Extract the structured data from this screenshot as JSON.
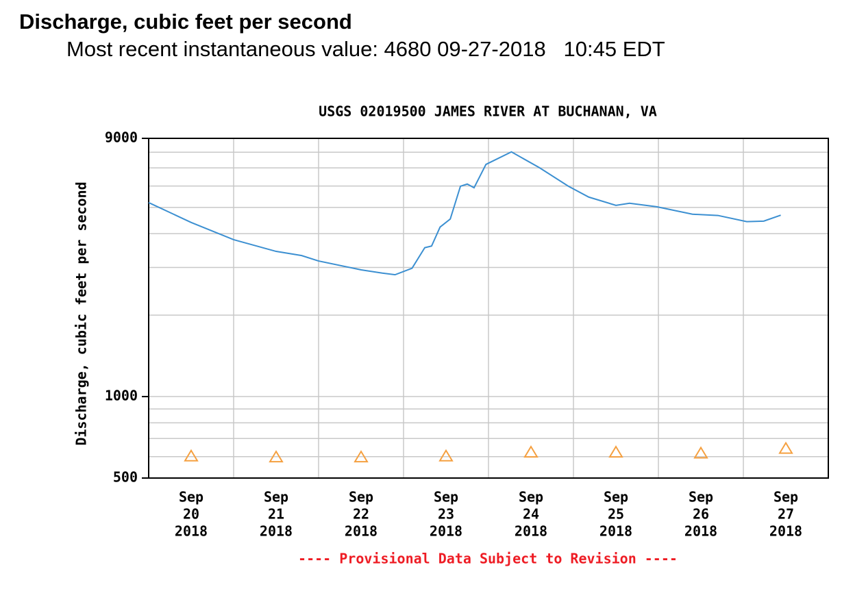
{
  "header": {
    "title": "Discharge, cubic feet per second",
    "subtitle": "Most recent instantaneous value: 4680 09-27-2018   10:45 EDT"
  },
  "chart_data": {
    "type": "line",
    "title": "USGS 02019500 JAMES RIVER AT BUCHANAN, VA",
    "y_label": "Discharge, cubic feet per second",
    "note": "---- Provisional Data Subject to Revision ----",
    "log_y": true,
    "xlim": [
      20,
      28
    ],
    "ylim": [
      500,
      9000
    ],
    "yticks": [
      500,
      1000,
      9000
    ],
    "ygrid": [
      600,
      700,
      800,
      900,
      1000,
      2000,
      3000,
      4000,
      5000,
      6000,
      7000,
      8000
    ],
    "xgrid": [
      21,
      22,
      23,
      24,
      25,
      26,
      27
    ],
    "categories": [
      [
        "Sep",
        "20",
        "2018"
      ],
      [
        "Sep",
        "21",
        "2018"
      ],
      [
        "Sep",
        "22",
        "2018"
      ],
      [
        "Sep",
        "23",
        "2018"
      ],
      [
        "Sep",
        "24",
        "2018"
      ],
      [
        "Sep",
        "25",
        "2018"
      ],
      [
        "Sep",
        "26",
        "2018"
      ],
      [
        "Sep",
        "27",
        "2018"
      ]
    ],
    "series": [
      {
        "color": "#3b8fd1",
        "marker": "none",
        "x": [
          20.0,
          20.5,
          21.0,
          21.5,
          21.8,
          22.0,
          22.5,
          22.75,
          22.9,
          23.1,
          23.25,
          23.33,
          23.43,
          23.55,
          23.67,
          23.75,
          23.83,
          23.97,
          24.27,
          24.6,
          24.94,
          25.18,
          25.5,
          25.66,
          25.98,
          26.4,
          26.7,
          27.04,
          27.24,
          27.44
        ],
        "values": [
          5210,
          4400,
          3800,
          3440,
          3320,
          3170,
          2940,
          2860,
          2820,
          2980,
          3550,
          3600,
          4230,
          4530,
          5990,
          6100,
          5910,
          7210,
          8020,
          7010,
          5990,
          5460,
          5090,
          5180,
          5030,
          4720,
          4670,
          4430,
          4450,
          4680
        ]
      },
      {
        "color": "#f5a040",
        "marker": "triangle",
        "x": [
          20.5,
          21.5,
          22.5,
          23.5,
          24.5,
          25.5,
          26.5,
          27.5
        ],
        "values": [
          600,
          595,
          595,
          600,
          620,
          620,
          615,
          640
        ]
      }
    ]
  }
}
